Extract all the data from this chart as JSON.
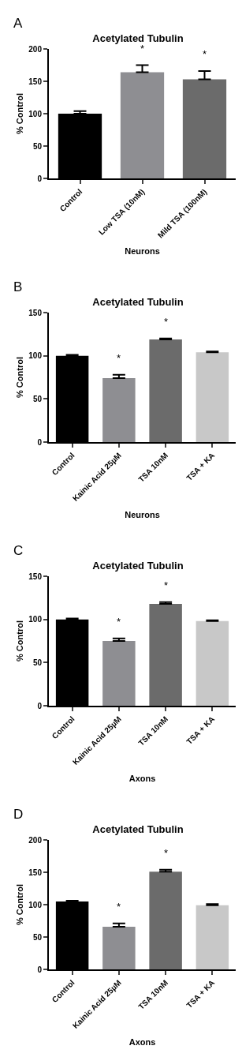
{
  "chart_data": [
    {
      "type": "bar",
      "title": "Acetylated Tubulin",
      "xlabel": "Neurons",
      "ylabel": "% Control",
      "categories": [
        "Control",
        "Low TSA (10nM)",
        "Mild TSA (100nM)"
      ],
      "values": [
        100,
        164,
        153
      ],
      "colors": [
        "#000000",
        "#8e8e92",
        "#6b6b6b"
      ],
      "errors": [
        [
          100,
          104
        ],
        [
          164,
          175
        ],
        [
          153,
          166
        ]
      ],
      "value_labels": [
        null,
        "*",
        "*"
      ],
      "ylim": [
        0,
        200
      ],
      "yticks": [
        0,
        50,
        100,
        150,
        200
      ],
      "grid": false,
      "annotations": [
        "A"
      ]
    },
    {
      "type": "bar",
      "title": "Acetylated Tubulin",
      "xlabel": "Neurons",
      "ylabel": "% Control",
      "categories": [
        "Control",
        "Kainic Acid 25µM",
        "TSA 10nM",
        "TSA + KA"
      ],
      "values": [
        100,
        74,
        119,
        104
      ],
      "colors": [
        "#000000",
        "#8e8e92",
        "#6b6b6b",
        "#c8c8c8"
      ],
      "errors": [
        [
          100,
          101
        ],
        [
          74,
          78
        ],
        [
          119,
          120
        ],
        [
          104,
          105
        ]
      ],
      "value_labels": [
        null,
        "*",
        "*",
        null
      ],
      "ylim": [
        0,
        150
      ],
      "yticks": [
        0,
        50,
        100,
        150
      ],
      "grid": false,
      "annotations": [
        "B"
      ]
    },
    {
      "type": "bar",
      "title": "Acetylated Tubulin",
      "xlabel": "Axons",
      "ylabel": "% Control",
      "categories": [
        "Control",
        "Kainic Acid 25µM",
        "TSA 10nM",
        "TSA + KA"
      ],
      "values": [
        100,
        75,
        118,
        98
      ],
      "colors": [
        "#000000",
        "#8e8e92",
        "#6b6b6b",
        "#c8c8c8"
      ],
      "errors": [
        [
          100,
          101
        ],
        [
          75,
          78
        ],
        [
          118,
          120
        ],
        [
          98,
          99
        ]
      ],
      "value_labels": [
        null,
        "*",
        "*",
        null
      ],
      "ylim": [
        0,
        150
      ],
      "yticks": [
        0,
        50,
        100,
        150
      ],
      "grid": false,
      "annotations": [
        "C"
      ]
    },
    {
      "type": "bar",
      "title": "Acetylated Tubulin",
      "xlabel": "Axons",
      "ylabel": "% Control",
      "categories": [
        "Control",
        "Kainic Acid 25µM",
        "TSA 10nM",
        "TSA + KA"
      ],
      "values": [
        105,
        66,
        151,
        99
      ],
      "colors": [
        "#000000",
        "#8e8e92",
        "#6b6b6b",
        "#c8c8c8"
      ],
      "errors": [
        [
          105,
          106
        ],
        [
          66,
          71
        ],
        [
          151,
          154
        ],
        [
          99,
          101
        ]
      ],
      "value_labels": [
        null,
        "*",
        "*",
        null
      ],
      "ylim": [
        0,
        200
      ],
      "yticks": [
        0,
        50,
        100,
        150,
        200
      ],
      "grid": false,
      "annotations": [
        "D"
      ]
    }
  ]
}
